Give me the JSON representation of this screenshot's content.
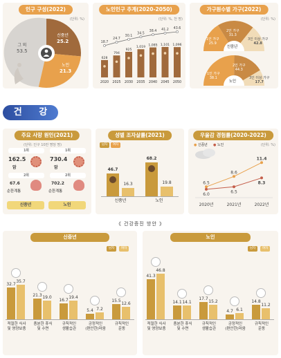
{
  "population": {
    "title": "인구 구성(2022)",
    "unit": "(단위: %)",
    "slices": [
      {
        "label": "그 외",
        "value": "53.5",
        "color": "#d7d4d0"
      },
      {
        "label": "신중년",
        "value": "25.2",
        "color": "#a06a3c"
      },
      {
        "label": "노인",
        "value": "21.3",
        "color": "#e8a14c"
      }
    ]
  },
  "elderly_trend": {
    "title": "노인인구 추계(2020-2050)",
    "unit": "(단위: %, 천 명)",
    "years": [
      "2020",
      "2025",
      "2030",
      "2035",
      "2040",
      "2045",
      "2050"
    ],
    "pct": [
      "18.7",
      "24.7",
      "30.1",
      "34.5",
      "38.4",
      "41.2",
      "43.6"
    ],
    "count": [
      "628",
      "794",
      "925",
      "1,019",
      "1,085",
      "1,101",
      "1,096"
    ],
    "count_values": [
      628,
      794,
      925,
      1019,
      1085,
      1101,
      1096
    ],
    "pct_values": [
      18.7,
      24.7,
      30.1,
      34.5,
      38.4,
      41.2,
      43.6
    ]
  },
  "households": {
    "title": "가구원수별 가구(2022)",
    "unit": "(단위: %)",
    "top": {
      "center": "신중년",
      "s1": {
        "label": "1인 가구",
        "value": "25.9"
      },
      "s2": {
        "label": "2인 가구",
        "value": "31.3"
      },
      "s3": {
        "label": "3인 이상 가구",
        "value": "42.8"
      }
    },
    "bottom": {
      "center": "노인",
      "s1": {
        "label": "1인 가구",
        "value": "38.1"
      },
      "s2": {
        "label": "2인 가구",
        "value": "44.3"
      },
      "s3": {
        "label": "3인 이상 가구",
        "value": "17.7"
      }
    }
  },
  "section": {
    "label": "건 강"
  },
  "death": {
    "title": "주요 사망 원인(2021)",
    "unit": "(단위: 인구 10만 명당 명)",
    "groups": [
      {
        "name": "신중년",
        "rank1": "1위",
        "v1": "162.5",
        "c1": "암",
        "rank2": "2위",
        "v2": "67.6",
        "c2": "순환계통"
      },
      {
        "name": "노인",
        "rank1": "1위",
        "v1": "730.4",
        "c1": "암",
        "rank2": "2위",
        "v2": "702.2",
        "c2": "순환계통"
      }
    ]
  },
  "sexratio": {
    "title": "성별 조자살률(2021)",
    "legend_m": "남자",
    "legend_f": "여자",
    "groups": [
      {
        "name": "신중년",
        "m": "46.7",
        "f": "16.3",
        "mv": 46.7,
        "fv": 16.3
      },
      {
        "name": "노인",
        "m": "68.2",
        "f": "19.8",
        "mv": 68.2,
        "fv": 19.8
      }
    ]
  },
  "depression": {
    "title": "우울감 경험률(2020-2022)",
    "unit": "(단위: %)",
    "legend_a": "신중년",
    "legend_b": "노인",
    "years": [
      "2020년",
      "2021년",
      "2022년"
    ],
    "a": [
      "6.0",
      "6.5",
      "8.3"
    ],
    "b": [
      "6.5",
      "8.6",
      "11.4"
    ],
    "a_values": [
      6.0,
      6.5,
      8.3
    ],
    "b_values": [
      6.5,
      8.6,
      11.4
    ]
  },
  "health_mgmt": {
    "title": "《 건강증진 방안 》",
    "legend_m": "남자",
    "legend_f": "여자",
    "categories": [
      "적절한 식사\n및 영양보충",
      "충분한 휴식\n및 수면",
      "규칙적인\n생활습관",
      "긍정적인\n(편안한)마음",
      "규칙적인\n운동"
    ],
    "groups": [
      {
        "name": "신중년",
        "m": [
          "32.7",
          "21.3",
          "16.7",
          "5.4",
          "15.5"
        ],
        "f": [
          "35.7",
          "19.0",
          "19.4",
          "7.2",
          "12.6"
        ],
        "mv": [
          32.7,
          21.3,
          16.7,
          5.4,
          15.5
        ],
        "fv": [
          35.7,
          19.0,
          19.4,
          7.2,
          12.6
        ]
      },
      {
        "name": "노인",
        "m": [
          "41.3",
          "14.1",
          "17.7",
          "4.7",
          "14.8"
        ],
        "f": [
          "46.8",
          "14.1",
          "15.2",
          "6.1",
          "11.2"
        ],
        "mv": [
          41.3,
          14.1,
          17.7,
          4.7,
          14.8
        ],
        "fv": [
          46.8,
          14.1,
          15.2,
          6.1,
          11.2
        ]
      }
    ]
  },
  "colors": {
    "brown": "#a06a3c",
    "orange": "#e8a14c",
    "gray": "#d7d4d0",
    "bg": "#f8f4ee",
    "gold": "#c99a3c",
    "tan": "#d8bf93",
    "blue": "#2d4ea0"
  }
}
